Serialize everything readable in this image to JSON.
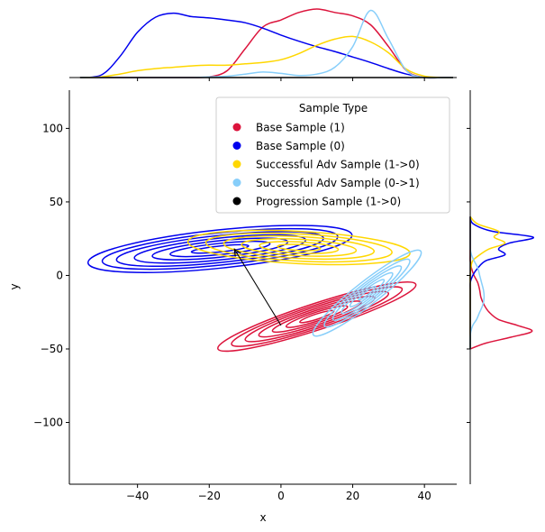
{
  "chart_data": {
    "type": "scatter",
    "subtype": "jointplot-kde",
    "xlabel": "x",
    "ylabel": "y",
    "xlim": [
      -59,
      49
    ],
    "ylim": [
      -142,
      126
    ],
    "xticks": [
      -40,
      -20,
      0,
      20,
      40
    ],
    "yticks": [
      100,
      50,
      0,
      -50,
      -100
    ],
    "xtick_labels": [
      "−40",
      "−20",
      "0",
      "20",
      "40"
    ],
    "ytick_labels": [
      "100",
      "50",
      "0",
      "−50",
      "−100"
    ],
    "grid": false,
    "legend": {
      "title": "Sample Type",
      "placement": "top-right",
      "entries": [
        {
          "label": "Base Sample (1)",
          "color": "#dc143c"
        },
        {
          "label": "Base Sample (0)",
          "color": "#0000ee"
        },
        {
          "label": "Successful Adv Sample (1->0)",
          "color": "#ffd700"
        },
        {
          "label": "Successful Adv Sample (0->1)",
          "color": "#87cefa"
        },
        {
          "label": "Progression Sample (1->0)",
          "color": "#000000"
        }
      ]
    },
    "clusters": [
      {
        "name": "Base Sample (1)",
        "color": "#dc143c",
        "center": [
          10,
          -28
        ],
        "angle_deg": 18,
        "rx": [
          5,
          9,
          13,
          17,
          21,
          25,
          29
        ],
        "ry": [
          1.8,
          3,
          4.2,
          5.4,
          6.6,
          7.8,
          9
        ]
      },
      {
        "name": "Base Sample (0)",
        "color": "#0000ee",
        "center": [
          -17,
          18
        ],
        "angle_deg": 6,
        "rx": [
          8,
          14,
          19,
          24,
          29,
          33,
          37
        ],
        "ry": [
          2,
          3.8,
          5.6,
          7.4,
          9.2,
          11,
          13
        ]
      },
      {
        "name": "Successful Adv Sample (1->0)",
        "color": "#ffd700",
        "center": [
          5,
          19
        ],
        "angle_deg": -3,
        "rx": [
          6,
          11,
          16,
          21,
          26,
          31
        ],
        "ry": [
          2,
          3.8,
          5.6,
          7.4,
          9.2,
          11
        ]
      },
      {
        "name": "Successful Adv Sample (0->1)",
        "color": "#87cefa",
        "center": [
          24,
          -12
        ],
        "angle_deg": 38,
        "rx": [
          3,
          6,
          9,
          12,
          15,
          19
        ],
        "ry": [
          1.2,
          2.5,
          3.8,
          5.1,
          6.4,
          8
        ]
      }
    ],
    "progression_arrow": {
      "from": [
        0,
        -34
      ],
      "to": [
        -13,
        18
      ],
      "color": "#000000"
    },
    "marginal_x": {
      "x": [
        -56,
        -50,
        -45,
        -40,
        -35,
        -30,
        -25,
        -20,
        -15,
        -10,
        -5,
        0,
        5,
        10,
        15,
        20,
        25,
        30,
        35,
        40,
        45,
        48
      ],
      "series": [
        {
          "name": "Base Sample (1)",
          "color": "#dc143c",
          "values": [
            0,
            0,
            0,
            0,
            0,
            0,
            0,
            0.01,
            0.1,
            0.42,
            0.74,
            0.84,
            0.95,
            1.0,
            0.95,
            0.9,
            0.77,
            0.45,
            0.1,
            0,
            0,
            0
          ]
        },
        {
          "name": "Base Sample (0)",
          "color": "#0000ee",
          "values": [
            0,
            0.04,
            0.3,
            0.66,
            0.88,
            0.94,
            0.89,
            0.87,
            0.84,
            0.8,
            0.72,
            0.62,
            0.53,
            0.45,
            0.38,
            0.3,
            0.22,
            0.13,
            0.05,
            0,
            0,
            0
          ]
        },
        {
          "name": "Successful Adv Sample (1->0)",
          "color": "#ffd700",
          "values": [
            0,
            0.01,
            0.05,
            0.1,
            0.13,
            0.15,
            0.17,
            0.18,
            0.18,
            0.2,
            0.22,
            0.26,
            0.35,
            0.47,
            0.56,
            0.6,
            0.52,
            0.36,
            0.12,
            0.02,
            0,
            0
          ]
        },
        {
          "name": "Successful Adv Sample (0->1)",
          "color": "#87cefa",
          "values": [
            0,
            0,
            0,
            0,
            0,
            0,
            0,
            0.01,
            0.02,
            0.05,
            0.08,
            0.06,
            0.03,
            0.05,
            0.15,
            0.45,
            0.98,
            0.56,
            0.1,
            0,
            0,
            0
          ]
        },
        {
          "name": "Progression Sample (1->0)",
          "color": "#000000",
          "values": [
            0,
            0,
            0,
            0,
            0,
            0,
            0,
            0,
            0,
            0,
            0,
            0,
            0,
            0,
            0,
            0,
            0,
            0,
            0,
            0,
            0,
            0
          ]
        }
      ]
    },
    "marginal_y": {
      "y": [
        40,
        35,
        30,
        26,
        22,
        18,
        14,
        10,
        5,
        0,
        -5,
        -10,
        -15,
        -20,
        -25,
        -30,
        -34,
        -38,
        -42,
        -46,
        -50
      ],
      "series": [
        {
          "name": "Base Sample (1)",
          "color": "#dc143c",
          "values": [
            0,
            0,
            0,
            0,
            0,
            0,
            0,
            0,
            0.02,
            0.06,
            0.12,
            0.15,
            0.17,
            0.22,
            0.3,
            0.45,
            0.75,
            0.98,
            0.65,
            0.25,
            0
          ]
        },
        {
          "name": "Base Sample (0)",
          "color": "#0000ee",
          "values": [
            0,
            0.05,
            0.35,
            1.0,
            0.62,
            0.45,
            0.55,
            0.25,
            0.12,
            0.04,
            0,
            0,
            0,
            0,
            0,
            0,
            0,
            0,
            0,
            0,
            0
          ]
        },
        {
          "name": "Successful Adv Sample (1->0)",
          "color": "#ffd700",
          "values": [
            0,
            0.12,
            0.45,
            0.38,
            0.55,
            0.3,
            0.15,
            0.04,
            0.01,
            0,
            0,
            0,
            0,
            0,
            0,
            0,
            0,
            0,
            0,
            0,
            0
          ]
        },
        {
          "name": "Successful Adv Sample (0->1)",
          "color": "#87cefa",
          "values": [
            0,
            0,
            0,
            0,
            0,
            0,
            0.02,
            0.06,
            0.12,
            0.15,
            0.18,
            0.21,
            0.22,
            0.2,
            0.15,
            0.1,
            0.04,
            0.01,
            0,
            0,
            0
          ]
        },
        {
          "name": "Progression Sample (1->0)",
          "color": "#000000",
          "values": [
            0,
            0,
            0,
            0,
            0,
            0,
            0,
            0,
            0,
            0,
            0,
            0,
            0,
            0,
            0,
            0,
            0,
            0,
            0,
            0,
            0
          ]
        }
      ]
    }
  }
}
